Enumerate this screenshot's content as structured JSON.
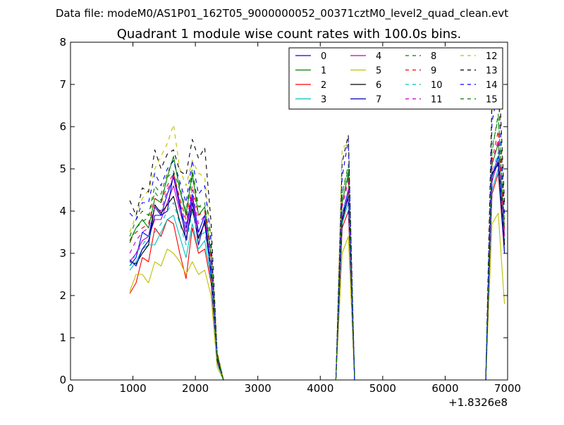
{
  "chart_data": {
    "type": "line",
    "suptitle": "Data file: modeM0/AS1P01_162T05_9000000052_00371cztM0_level2_quad_clean.evt",
    "title": "Quadrant 1 module wise count rates with 100.0s bins.",
    "xlabel": "",
    "ylabel": "",
    "xlim": [
      0,
      7000
    ],
    "ylim": [
      0,
      8
    ],
    "x_ticks": [
      0,
      1000,
      2000,
      3000,
      4000,
      5000,
      6000,
      7000
    ],
    "y_ticks": [
      0,
      1,
      2,
      3,
      4,
      5,
      6,
      7,
      8
    ],
    "x_offset_label": "+1.8326e8",
    "grid": false,
    "legend_position": "top-right",
    "x": [
      950,
      1050,
      1150,
      1250,
      1350,
      1450,
      1550,
      1650,
      1750,
      1850,
      1950,
      2050,
      2150,
      2250,
      2350,
      2450,
      2550,
      4250,
      4350,
      4450,
      4550,
      4650,
      6650,
      6750,
      6850,
      6950
    ],
    "series": [
      {
        "name": "0",
        "color": "#0000ff",
        "dash": "solid",
        "values": [
          2.7,
          2.9,
          3.5,
          3.4,
          4.1,
          3.9,
          4.4,
          4.8,
          4.1,
          3.6,
          4.4,
          3.5,
          3.9,
          2.6,
          0.5,
          0,
          0,
          0,
          3.9,
          4.5,
          0,
          0,
          0,
          4.8,
          5.3,
          3.4
        ]
      },
      {
        "name": "1",
        "color": "#008000",
        "dash": "solid",
        "values": [
          3.3,
          3.6,
          3.8,
          3.6,
          4.3,
          4.2,
          4.8,
          5.3,
          4.5,
          3.9,
          4.9,
          3.9,
          4.1,
          2.9,
          0.6,
          0,
          0,
          0,
          4.2,
          4.9,
          0,
          0,
          0,
          5.1,
          5.6,
          3.6
        ]
      },
      {
        "name": "2",
        "color": "#ff0000",
        "dash": "solid",
        "values": [
          2.05,
          2.3,
          2.9,
          2.8,
          3.6,
          3.4,
          3.8,
          3.7,
          3.0,
          2.4,
          3.6,
          3.0,
          3.1,
          2.3,
          0.4,
          0,
          0,
          0,
          3.6,
          4.0,
          0,
          0,
          0,
          4.4,
          4.9,
          3.0
        ]
      },
      {
        "name": "3",
        "color": "#00bfbf",
        "dash": "solid",
        "values": [
          2.6,
          2.8,
          3.1,
          3.2,
          3.2,
          3.5,
          3.8,
          3.9,
          3.4,
          2.9,
          3.7,
          3.1,
          3.3,
          2.4,
          0.4,
          0,
          0,
          0,
          3.7,
          4.2,
          0,
          0,
          0,
          4.5,
          5.0,
          3.1
        ]
      },
      {
        "name": "4",
        "color": "#bf00bf",
        "dash": "solid",
        "values": [
          2.8,
          3.0,
          3.3,
          3.4,
          3.8,
          3.8,
          4.2,
          4.6,
          4.0,
          3.5,
          4.3,
          3.4,
          3.7,
          2.5,
          0.5,
          0,
          0,
          0,
          3.8,
          4.4,
          0,
          0,
          0,
          4.7,
          5.2,
          3.3
        ]
      },
      {
        "name": "5",
        "color": "#bfbf00",
        "dash": "solid",
        "values": [
          2.1,
          2.5,
          2.5,
          2.3,
          2.8,
          2.7,
          3.1,
          3.0,
          2.8,
          2.5,
          2.8,
          2.5,
          2.6,
          2.0,
          0.3,
          0,
          0,
          0,
          3.0,
          3.4,
          0,
          0,
          0,
          3.7,
          3.95,
          1.8
        ]
      },
      {
        "name": "6",
        "color": "#000000",
        "dash": "solid",
        "values": [
          2.8,
          2.75,
          3.0,
          3.2,
          4.15,
          3.95,
          4.15,
          4.35,
          3.75,
          3.35,
          4.05,
          3.35,
          3.75,
          2.55,
          0.45,
          0,
          0,
          0,
          3.75,
          4.35,
          0,
          0,
          0,
          4.85,
          5.15,
          3.2
        ]
      },
      {
        "name": "7",
        "color": "#0000bf",
        "dash": "solid",
        "values": [
          2.85,
          2.7,
          3.1,
          3.3,
          3.9,
          3.9,
          4.0,
          4.9,
          4.2,
          3.3,
          4.2,
          3.2,
          3.8,
          2.5,
          0.5,
          0,
          0,
          0,
          3.9,
          4.3,
          0,
          0,
          0,
          4.9,
          5.1,
          3.0
        ]
      },
      {
        "name": "8",
        "color": "#008000",
        "dash": "dashed",
        "values": [
          3.4,
          3.8,
          4.0,
          3.9,
          4.6,
          4.4,
          4.9,
          5.2,
          4.6,
          4.0,
          5.0,
          4.1,
          4.2,
          3.1,
          0.6,
          0,
          0,
          0,
          4.4,
          5.1,
          0,
          0,
          0,
          5.5,
          6.2,
          3.8
        ]
      },
      {
        "name": "9",
        "color": "#ff0000",
        "dash": "dashed",
        "values": [
          3.3,
          3.5,
          3.6,
          3.7,
          4.3,
          4.2,
          4.6,
          4.9,
          4.3,
          3.8,
          4.6,
          3.9,
          4.0,
          2.9,
          0.5,
          0,
          0,
          0,
          4.2,
          4.8,
          0,
          0,
          0,
          5.2,
          5.9,
          3.5
        ]
      },
      {
        "name": "10",
        "color": "#00bfbf",
        "dash": "dashed",
        "values": [
          2.7,
          3.0,
          3.2,
          3.4,
          3.5,
          3.7,
          4.0,
          4.2,
          3.7,
          3.2,
          4.0,
          3.4,
          3.5,
          2.6,
          0.4,
          0,
          0,
          0,
          3.9,
          4.4,
          0,
          0,
          0,
          4.9,
          5.4,
          3.3
        ]
      },
      {
        "name": "11",
        "color": "#bf00bf",
        "dash": "dashed",
        "values": [
          3.0,
          3.3,
          3.5,
          3.6,
          4.1,
          4.0,
          4.5,
          4.8,
          4.2,
          3.7,
          4.5,
          3.7,
          3.9,
          2.8,
          0.5,
          0,
          0,
          0,
          4.1,
          4.7,
          0,
          0,
          0,
          5.1,
          5.7,
          3.4
        ]
      },
      {
        "name": "12",
        "color": "#bfbf00",
        "dash": "dashed",
        "values": [
          3.5,
          3.9,
          4.3,
          4.5,
          5.0,
          5.3,
          5.6,
          6.05,
          5.0,
          4.6,
          5.2,
          4.9,
          4.8,
          3.4,
          0.7,
          0,
          0,
          0,
          5.5,
          5.6,
          0,
          0,
          0,
          6.4,
          7.2,
          4.1
        ]
      },
      {
        "name": "13",
        "color": "#000000",
        "dash": "dashed",
        "values": [
          4.25,
          3.9,
          4.55,
          4.45,
          5.45,
          5.0,
          5.35,
          5.45,
          4.95,
          4.85,
          5.7,
          5.25,
          5.5,
          3.75,
          0.6,
          0,
          0,
          0,
          5.15,
          5.8,
          0,
          0,
          0,
          6.7,
          7.6,
          4.2
        ]
      },
      {
        "name": "14",
        "color": "#0000ff",
        "dash": "dashed",
        "values": [
          3.95,
          3.8,
          4.2,
          4.2,
          4.9,
          4.6,
          5.0,
          5.2,
          4.7,
          4.2,
          5.2,
          4.4,
          4.6,
          3.3,
          0.6,
          0,
          0,
          0,
          4.8,
          5.7,
          0,
          0,
          0,
          6.1,
          6.9,
          3.9
        ]
      },
      {
        "name": "15",
        "color": "#008000",
        "dash": "dashed",
        "values": [
          3.25,
          3.6,
          3.75,
          3.85,
          4.45,
          4.25,
          4.8,
          4.95,
          4.5,
          3.95,
          4.8,
          4.1,
          4.1,
          3.0,
          0.55,
          0,
          0,
          0,
          4.4,
          5.0,
          0,
          0,
          0,
          5.4,
          6.3,
          3.7
        ]
      }
    ]
  }
}
